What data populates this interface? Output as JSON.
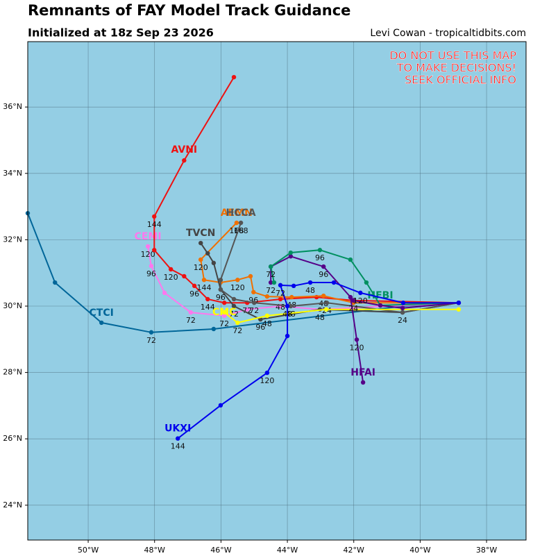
{
  "chart_data": {
    "type": "track",
    "title": "Remnants of FAY Model Track Guidance",
    "subtitle": "Initialized at 18z Sep 23 2026",
    "credit": "Levi Cowan - tropicaltidbits.com",
    "warning": [
      "DO NOT USE THIS MAP",
      "TO MAKE DECISIONS!",
      "SEEK OFFICIAL INFO"
    ],
    "background": "#94cee4",
    "xlim": [
      -51.82,
      -36.81
    ],
    "ylim": [
      22.95,
      37.97
    ],
    "xticks": [
      {
        "value": -50,
        "label": "50°W"
      },
      {
        "value": -48,
        "label": "48°W"
      },
      {
        "value": -46,
        "label": "46°W"
      },
      {
        "value": -44,
        "label": "44°W"
      },
      {
        "value": -42,
        "label": "42°W"
      },
      {
        "value": -40,
        "label": "40°W"
      },
      {
        "value": -38,
        "label": "38°W"
      }
    ],
    "yticks": [
      {
        "value": 24,
        "label": "24°N"
      },
      {
        "value": 26,
        "label": "26°N"
      },
      {
        "value": 28,
        "label": "28°N"
      },
      {
        "value": 30,
        "label": "30°N"
      },
      {
        "value": 32,
        "label": "32°N"
      },
      {
        "value": 34,
        "label": "34°N"
      },
      {
        "value": 36,
        "label": "36°N"
      }
    ],
    "grid": true,
    "series": [
      {
        "name": "CTCI",
        "color": "#006699",
        "x": [
          -38.84,
          -40.53,
          -46.22,
          -48.1,
          -49.6,
          -51.0,
          -51.82
        ],
        "y": [
          30.1,
          30.0,
          29.31,
          29.21,
          29.5,
          30.71,
          32.8
        ],
        "point_labels": [
          null,
          null,
          null,
          72,
          null,
          null,
          null
        ]
      },
      {
        "name": "CEMI",
        "color": "#ff77ee",
        "x": [
          -38.84,
          -43.02,
          -44.21,
          -45.21,
          -45.9,
          -46.91,
          -47.7,
          -48.1,
          -48.2
        ],
        "y": [
          30.1,
          29.9,
          30.0,
          29.9,
          29.71,
          29.81,
          30.4,
          31.21,
          31.8
        ],
        "point_labels": [
          null,
          null,
          null,
          null,
          72,
          72,
          null,
          96,
          120
        ]
      },
      {
        "name": "AVNI",
        "color": "#ee1111",
        "x": [
          -38.84,
          -42.01,
          -43.12,
          -44.21,
          -45.21,
          -45.9,
          -46.4,
          -46.8,
          -47.11,
          -47.51,
          -48.01,
          -48.01,
          -47.11,
          -45.61
        ],
        "y": [
          30.1,
          30.17,
          30.27,
          30.21,
          30.1,
          30.1,
          30.21,
          30.61,
          30.9,
          31.11,
          31.69,
          32.7,
          34.39,
          36.9
        ],
        "point_labels": [
          null,
          null,
          null,
          48,
          72,
          null,
          144,
          96,
          null,
          120,
          null,
          144,
          null,
          null
        ]
      },
      {
        "name": "AEMN",
        "color": "#f07000",
        "x": [
          -38.84,
          -42.01,
          -42.91,
          -43.87,
          -44.61,
          -45.02,
          -45.11,
          -45.5,
          -46.01,
          -46.51,
          -46.61,
          -45.53
        ],
        "y": [
          30.1,
          30.1,
          30.31,
          30.27,
          30.29,
          30.42,
          30.9,
          30.79,
          30.71,
          30.79,
          31.4,
          32.51
        ],
        "point_labels": [
          null,
          null,
          48,
          48,
          null,
          96,
          null,
          120,
          null,
          144,
          120,
          168
        ]
      },
      {
        "name": "TVCN",
        "color": "#444444",
        "x": [
          -38.84,
          -40.53,
          -43.02,
          -44.81,
          -45.61,
          -46.01,
          -46.22,
          -46.4,
          -46.61
        ],
        "y": [
          30.1,
          29.81,
          29.9,
          29.6,
          30.0,
          30.5,
          31.3,
          31.59,
          31.9
        ],
        "point_labels": [
          null,
          24,
          48,
          96,
          72,
          96,
          null,
          null,
          null
        ]
      },
      {
        "name": "HCCA",
        "color": "#555555",
        "x": [
          -38.84,
          -40.53,
          -42.81,
          -43.9,
          -45.0,
          -45.61,
          -46.01,
          -46.01,
          -45.4
        ],
        "y": [
          30.1,
          29.81,
          30.1,
          30.0,
          30.1,
          30.21,
          30.5,
          30.79,
          32.51
        ],
        "point_labels": [
          null,
          null,
          24,
          48,
          72,
          null,
          null,
          null,
          168
        ]
      },
      {
        "name": "CMC",
        "color": "#ffff00",
        "x": [
          -38.84,
          -42.83,
          -44.61,
          -45.5,
          -45.9
        ],
        "y": [
          29.9,
          29.9,
          29.71,
          29.5,
          29.81
        ],
        "point_labels": [
          null,
          null,
          48,
          72,
          null
        ]
      },
      {
        "color": "#550088",
        "x": [
          -42.01,
          -42.91,
          -43.9,
          -44.5,
          -44.5
        ],
        "y": [
          30.17,
          31.19,
          31.5,
          31.19,
          30.71
        ],
        "point_labels": [
          null,
          96,
          null,
          null,
          72
        ]
      },
      {
        "name": "HFBI",
        "color": "#009060",
        "x": [
          -38.84,
          -41.2,
          -41.62,
          -42.1,
          -43.02,
          -43.9,
          -44.5,
          -44.4
        ],
        "y": [
          30.1,
          30.02,
          30.71,
          31.4,
          31.69,
          31.61,
          31.19,
          30.71
        ],
        "point_labels": [
          null,
          null,
          null,
          null,
          96,
          null,
          72,
          null
        ]
      },
      {
        "name": "HFAI",
        "color": "#550088",
        "x": [
          -38.84,
          -40.53,
          -41.2,
          -42.01,
          -42.1,
          -41.91,
          -41.72
        ],
        "y": [
          30.1,
          29.94,
          30.02,
          30.17,
          30.27,
          28.99,
          27.7
        ],
        "point_labels": [
          null,
          null,
          null,
          24,
          null,
          120,
          null
        ]
      },
      {
        "name": "UKXI",
        "color": "#0000ee",
        "x": [
          -38.84,
          -40.51,
          -41.8,
          -42.6,
          -43.31,
          -43.81,
          -44.21,
          -44.0,
          -44.0,
          -44.61,
          -46.01,
          -47.3
        ],
        "y": [
          30.1,
          30.1,
          30.4,
          30.71,
          30.71,
          30.61,
          30.63,
          30.0,
          29.1,
          27.99,
          27.01,
          26.01
        ],
        "point_labels": [
          null,
          null,
          120,
          null,
          48,
          null,
          72,
          48,
          null,
          120,
          null,
          144
        ]
      }
    ]
  }
}
